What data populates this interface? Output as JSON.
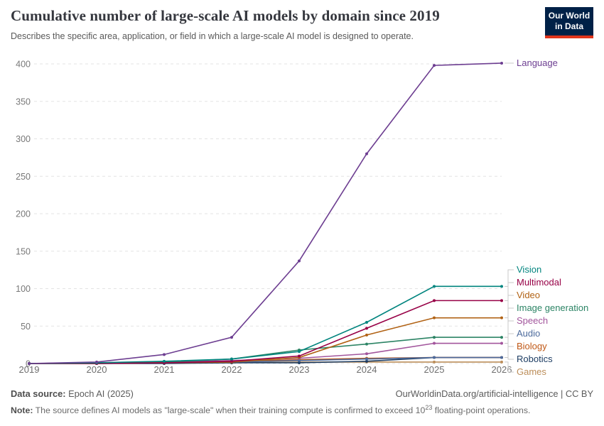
{
  "header": {
    "title": "Cumulative number of large-scale AI models by domain since 2019",
    "subtitle": "Describes the specific area, application, or field in which a large-scale AI model is designed to operate.",
    "logo": {
      "line1": "Our World",
      "line2": "in Data",
      "bg_color": "#002147",
      "accent_color": "#E0351B"
    }
  },
  "chart_data": {
    "type": "line",
    "title": "Cumulative number of large-scale AI models by domain since 2019",
    "x": [
      2019,
      2020,
      2021,
      2022,
      2023,
      2024,
      2025,
      2026
    ],
    "x_tick_labels": [
      "2019",
      "2020",
      "2021",
      "2022",
      "2023",
      "2024",
      "2025",
      "2026"
    ],
    "yticks": [
      0,
      50,
      100,
      150,
      200,
      250,
      300,
      350,
      400
    ],
    "ylim": [
      0,
      400
    ],
    "grid": "horizontal-dashed",
    "legend_position": "right-end-labels",
    "series": [
      {
        "name": "Language",
        "color": "#6D3E91",
        "values": [
          0,
          2,
          12,
          35,
          137,
          280,
          398,
          401
        ]
      },
      {
        "name": "Vision",
        "color": "#00847E",
        "values": [
          0,
          1,
          3,
          6,
          16,
          55,
          103,
          103
        ]
      },
      {
        "name": "Multimodal",
        "color": "#970046",
        "values": [
          0,
          0,
          1,
          3,
          10,
          47,
          84,
          84
        ]
      },
      {
        "name": "Video",
        "color": "#B16214",
        "values": [
          0,
          0,
          1,
          2,
          8,
          38,
          61,
          61
        ]
      },
      {
        "name": "Image generation",
        "color": "#2C8465",
        "values": [
          0,
          0,
          2,
          6,
          18,
          26,
          35,
          35
        ]
      },
      {
        "name": "Speech",
        "color": "#A2559C",
        "values": [
          0,
          1,
          2,
          4,
          7,
          13,
          27,
          27
        ]
      },
      {
        "name": "Audio",
        "color": "#4C6A9C",
        "values": [
          0,
          0,
          1,
          2,
          4,
          6,
          8,
          8
        ]
      },
      {
        "name": "Biology",
        "color": "#C05917",
        "values": [
          0,
          1,
          2,
          3,
          5,
          7,
          8,
          8
        ]
      },
      {
        "name": "Robotics",
        "color": "#1D3D63",
        "values": [
          0,
          0,
          0,
          1,
          1,
          3,
          8,
          8
        ]
      },
      {
        "name": "Games",
        "color": "#BC8E5A",
        "values": [
          0,
          0,
          1,
          1,
          2,
          2,
          2,
          2
        ]
      }
    ]
  },
  "footer": {
    "datasource_label": "Data source:",
    "datasource_value": "Epoch AI (2025)",
    "attribution": "OurWorldinData.org/artificial-intelligence | CC BY",
    "note_label": "Note:",
    "note_body_1": "The source defines AI models as \"large-scale\" when their training compute is confirmed to exceed 10",
    "note_exponent": "23",
    "note_body_2": "floating-point operations."
  }
}
